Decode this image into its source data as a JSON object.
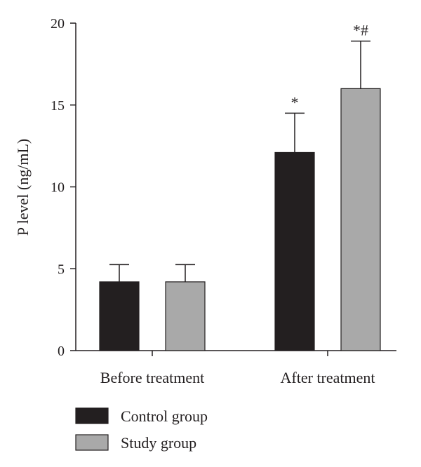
{
  "chart_data": {
    "type": "bar",
    "ylabel": "P level (ng/mL)",
    "xlabel": "",
    "ylim": [
      0,
      20
    ],
    "yticks": [
      0,
      5,
      10,
      15,
      20
    ],
    "categories": [
      "Before treatment",
      "After treatment"
    ],
    "series": [
      {
        "name": "Control group",
        "color": "#231f20",
        "values": [
          4.2,
          12.1
        ],
        "errors": [
          1.05,
          2.4
        ],
        "annotations": [
          "",
          "*"
        ]
      },
      {
        "name": "Study group",
        "color": "#a9a9a9",
        "values": [
          4.2,
          16.0
        ],
        "errors": [
          1.05,
          2.9
        ],
        "annotations": [
          "",
          "*#"
        ]
      }
    ],
    "legend_position": "bottom-left",
    "grid": false
  }
}
